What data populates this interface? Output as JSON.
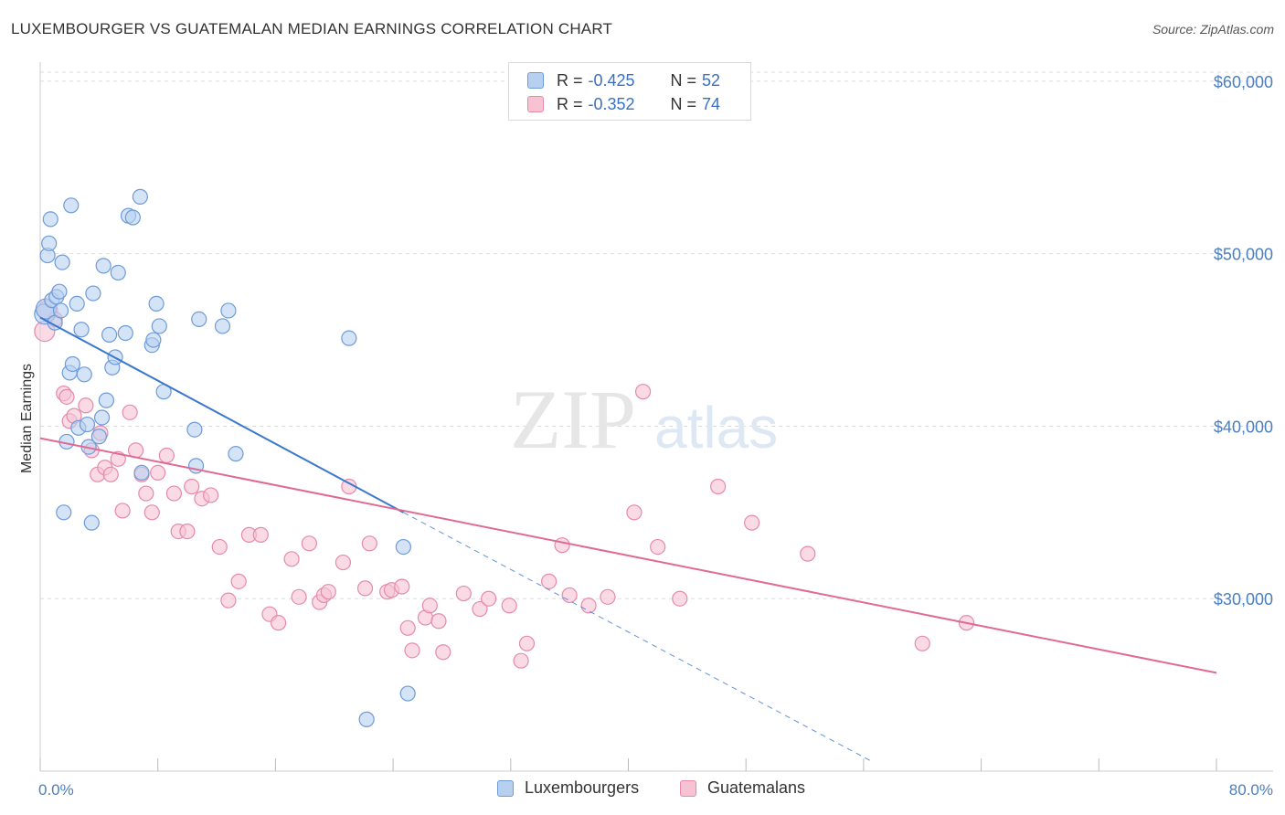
{
  "title": "LUXEMBOURGER VS GUATEMALAN MEDIAN EARNINGS CORRELATION CHART",
  "source": "Source: ZipAtlas.com",
  "watermark_zip": "ZIP",
  "watermark_atlas": "atlas",
  "legend": {
    "r_label": "R =",
    "n_label": "N =",
    "rows": [
      {
        "r": "-0.425",
        "n": "52"
      },
      {
        "r": "-0.352",
        "n": "74"
      }
    ]
  },
  "bottom_legend": [
    "Luxembourgers",
    "Guatemalans"
  ],
  "colors": {
    "blue_fill": "#b8d0f0",
    "blue_stroke": "#6d9bd8",
    "blue_line": "#3a78d0",
    "pink_fill": "#f7c3d3",
    "pink_stroke": "#e68aa8",
    "pink_line": "#e06a93",
    "tick_text": "#4a7fc1",
    "grid": "#dddddd"
  },
  "chart_data": {
    "type": "scatter",
    "title": "LUXEMBOURGER VS GUATEMALAN MEDIAN EARNINGS CORRELATION CHART",
    "xlabel": "",
    "ylabel": "Median Earnings",
    "xlim": [
      0,
      80
    ],
    "ylim": [
      20000,
      61000
    ],
    "x_tick_labels": [
      "0.0%",
      "80.0%"
    ],
    "y_ticks": [
      30000,
      40000,
      50000,
      60000
    ],
    "y_tick_labels": [
      "$30,000",
      "$40,000",
      "$50,000",
      "$60,000"
    ],
    "grid": "horizontal dashed",
    "legend_position": "top-center",
    "series": [
      {
        "name": "Luxembourgers",
        "x": [
          0.3,
          0.4,
          0.5,
          0.6,
          0.7,
          0.8,
          1.0,
          1.1,
          1.3,
          1.4,
          1.5,
          1.6,
          1.8,
          2.0,
          2.1,
          2.2,
          2.5,
          2.6,
          2.8,
          3.0,
          3.2,
          3.3,
          3.5,
          3.6,
          4.0,
          4.2,
          4.3,
          4.5,
          4.7,
          4.9,
          5.1,
          5.3,
          5.8,
          6.0,
          6.3,
          6.8,
          6.9,
          7.6,
          7.7,
          7.9,
          8.1,
          8.4,
          10.5,
          10.6,
          10.8,
          12.4,
          12.8,
          13.3,
          21.0,
          22.2,
          24.7,
          25.0
        ],
        "y": [
          46500,
          46800,
          49900,
          50600,
          52000,
          47300,
          46000,
          47500,
          47800,
          46700,
          49500,
          35000,
          39100,
          43100,
          52800,
          43600,
          47100,
          39900,
          45600,
          43000,
          40100,
          38800,
          34400,
          47700,
          39400,
          40500,
          49300,
          41500,
          45300,
          43400,
          44000,
          48900,
          45400,
          52200,
          52100,
          53300,
          37300,
          44700,
          45000,
          47100,
          45800,
          42000,
          39800,
          37700,
          46200,
          45800,
          46700,
          38400,
          45100,
          23000,
          33000,
          24500
        ],
        "trend": {
          "x": [
            0,
            24.7
          ],
          "y": [
            46300,
            35000
          ],
          "dashed_to": {
            "x": 56.7,
            "y": 20500
          }
        }
      },
      {
        "name": "Guatemalans",
        "x": [
          0.3,
          0.5,
          1.0,
          1.6,
          1.8,
          2.0,
          2.3,
          3.1,
          3.5,
          3.9,
          4.1,
          4.4,
          4.8,
          5.3,
          5.6,
          6.1,
          6.5,
          6.9,
          7.2,
          7.6,
          8.0,
          8.6,
          9.1,
          9.4,
          10.0,
          10.3,
          11.0,
          11.6,
          12.2,
          12.8,
          13.5,
          14.2,
          15.0,
          15.6,
          16.2,
          17.1,
          17.6,
          18.3,
          19.0,
          19.3,
          19.6,
          20.6,
          21.0,
          22.1,
          22.4,
          23.6,
          23.9,
          24.6,
          25.0,
          25.3,
          26.2,
          26.5,
          27.1,
          27.4,
          28.8,
          29.9,
          30.5,
          31.9,
          32.7,
          33.1,
          34.6,
          35.5,
          36.0,
          37.3,
          38.6,
          40.4,
          41.0,
          42.0,
          43.5,
          46.1,
          48.4,
          52.2,
          60.0,
          63.0
        ],
        "y": [
          45500,
          46700,
          46200,
          41900,
          41700,
          40300,
          40600,
          41200,
          38600,
          37200,
          39600,
          37600,
          37200,
          38100,
          35100,
          40800,
          38600,
          37200,
          36100,
          35000,
          37300,
          38300,
          36100,
          33900,
          33900,
          36500,
          35800,
          36000,
          33000,
          29900,
          31000,
          33700,
          33700,
          29100,
          28600,
          32300,
          30100,
          33200,
          29800,
          30200,
          30400,
          32100,
          36500,
          30600,
          33200,
          30400,
          30500,
          30700,
          28300,
          27000,
          28900,
          29600,
          28700,
          26900,
          30300,
          29400,
          30000,
          29600,
          26400,
          27400,
          31000,
          33100,
          30200,
          29600,
          30100,
          35000,
          42000,
          33000,
          30000,
          36500,
          34400,
          32600,
          27400,
          28600
        ],
        "trend": {
          "x": [
            0,
            80
          ],
          "y": [
            39300,
            25700
          ]
        }
      }
    ]
  }
}
